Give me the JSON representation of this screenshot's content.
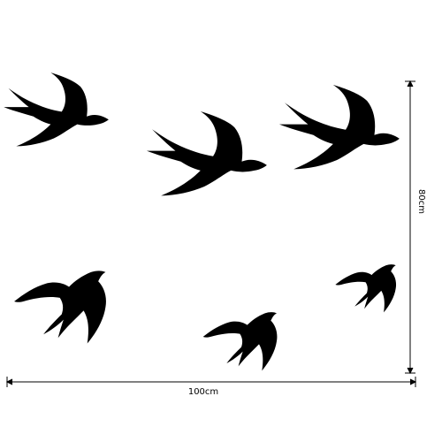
{
  "product_image": {
    "subject": "swallow-silhouettes",
    "bird_count": 6,
    "silhouette_color": "#000000",
    "background_color": "#ffffff"
  },
  "dimensions": {
    "width_label": "100cm",
    "height_label": "80cm",
    "line_color": "#000000"
  }
}
